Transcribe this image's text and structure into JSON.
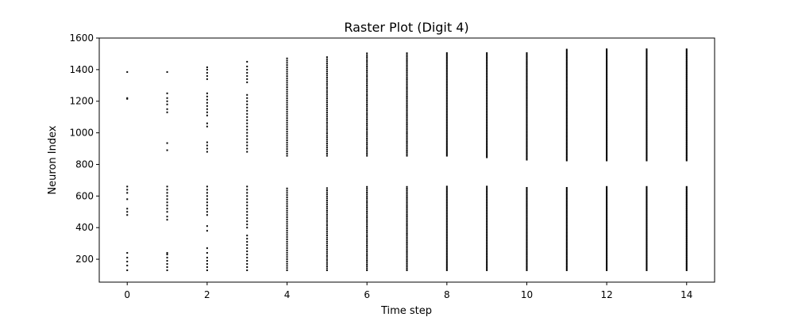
{
  "chart_data": {
    "type": "scatter",
    "title": "Raster Plot (Digit 4)",
    "xlabel": "Time step",
    "ylabel": "Neuron Index",
    "xlim": [
      -0.7,
      14.7
    ],
    "ylim": [
      55,
      1600
    ],
    "xticks": [
      0,
      2,
      4,
      6,
      8,
      10,
      12,
      14
    ],
    "yticks": [
      200,
      400,
      600,
      800,
      1000,
      1200,
      1400,
      1600
    ],
    "grid": false,
    "marker_color": "#000000",
    "spikes": [
      {
        "t": 0,
        "neurons": [
          130,
          160,
          185,
          210,
          240,
          480,
          500,
          520,
          580,
          620,
          640,
          660,
          1215,
          1220,
          1385
        ]
      },
      {
        "t": 1,
        "neurons": [
          130,
          150,
          170,
          190,
          210,
          230,
          240,
          450,
          470,
          500,
          520,
          540,
          560,
          580,
          600,
          620,
          640,
          660,
          890,
          935,
          1130,
          1150,
          1180,
          1200,
          1220,
          1250,
          1385
        ]
      },
      {
        "t": 2,
        "neurons": [
          130,
          150,
          170,
          190,
          210,
          240,
          270,
          380,
          410,
          480,
          500,
          520,
          540,
          560,
          580,
          600,
          620,
          640,
          660,
          880,
          900,
          920,
          940,
          1040,
          1060,
          1110,
          1130,
          1150,
          1170,
          1190,
          1210,
          1230,
          1250,
          1340,
          1360,
          1380,
          1400,
          1415
        ]
      },
      {
        "t": 3,
        "neurons": [
          130,
          150,
          170,
          190,
          210,
          230,
          250,
          270,
          290,
          310,
          330,
          350,
          400,
          420,
          440,
          460,
          480,
          500,
          520,
          540,
          560,
          580,
          600,
          620,
          640,
          660,
          880,
          900,
          920,
          940,
          960,
          980,
          1000,
          1020,
          1040,
          1060,
          1080,
          1100,
          1120,
          1140,
          1160,
          1180,
          1200,
          1220,
          1240,
          1320,
          1340,
          1360,
          1380,
          1400,
          1420,
          1450
        ]
      },
      {
        "t": 4,
        "range": [
          [
            130,
            660
          ],
          [
            855,
            1480
          ]
        ],
        "step": 14
      },
      {
        "t": 5,
        "range": [
          [
            130,
            660
          ],
          [
            855,
            1480
          ]
        ],
        "step": 13
      },
      {
        "t": 6,
        "range": [
          [
            130,
            660
          ],
          [
            855,
            1505
          ]
        ],
        "step": 12
      },
      {
        "t": 7,
        "range": [
          [
            130,
            660
          ],
          [
            855,
            1505
          ]
        ],
        "step": 11
      },
      {
        "t": 8,
        "range": [
          [
            130,
            660
          ],
          [
            855,
            1505
          ]
        ],
        "step": 10
      },
      {
        "t": 9,
        "range": [
          [
            130,
            660
          ],
          [
            845,
            1505
          ]
        ],
        "step": 10
      },
      {
        "t": 10,
        "range": [
          [
            130,
            660
          ],
          [
            830,
            1505
          ]
        ],
        "step": 9
      },
      {
        "t": 11,
        "range": [
          [
            130,
            660
          ],
          [
            825,
            1535
          ]
        ],
        "step": 9
      },
      {
        "t": 12,
        "range": [
          [
            130,
            660
          ],
          [
            825,
            1535
          ]
        ],
        "step": 8
      },
      {
        "t": 13,
        "range": [
          [
            130,
            660
          ],
          [
            825,
            1535
          ]
        ],
        "step": 8
      },
      {
        "t": 14,
        "range": [
          [
            130,
            660
          ],
          [
            825,
            1535
          ]
        ],
        "step": 8
      }
    ]
  }
}
